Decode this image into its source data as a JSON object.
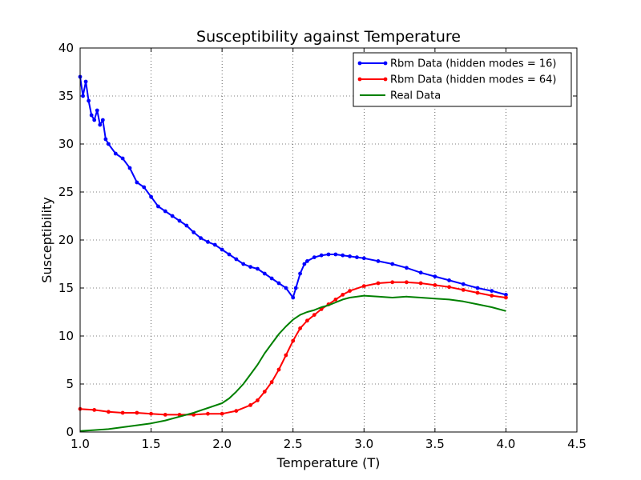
{
  "chart_data": {
    "type": "line",
    "title": "Susceptibility against Temperature",
    "xlabel": "Temperature (T)",
    "ylabel": "Susceptibility",
    "xlim": [
      1.0,
      4.5
    ],
    "ylim": [
      0,
      40
    ],
    "xticks": [
      "1.0",
      "1.5",
      "2.0",
      "2.5",
      "3.0",
      "3.5",
      "4.0",
      "4.5"
    ],
    "yticks": [
      "0",
      "5",
      "10",
      "15",
      "20",
      "25",
      "30",
      "35",
      "40"
    ],
    "grid": true,
    "legend_position": "top-right",
    "series": [
      {
        "name": "Rbm Data (hidden modes = 16)",
        "color": "#0000ff",
        "marker": "dot",
        "x": [
          1.0,
          1.02,
          1.04,
          1.06,
          1.08,
          1.1,
          1.12,
          1.14,
          1.16,
          1.18,
          1.2,
          1.25,
          1.3,
          1.35,
          1.4,
          1.45,
          1.5,
          1.55,
          1.6,
          1.65,
          1.7,
          1.75,
          1.8,
          1.85,
          1.9,
          1.95,
          2.0,
          2.05,
          2.1,
          2.15,
          2.2,
          2.25,
          2.3,
          2.35,
          2.4,
          2.45,
          2.5,
          2.52,
          2.55,
          2.58,
          2.6,
          2.65,
          2.7,
          2.75,
          2.8,
          2.85,
          2.9,
          2.95,
          3.0,
          3.1,
          3.2,
          3.3,
          3.4,
          3.5,
          3.6,
          3.7,
          3.8,
          3.9,
          4.0
        ],
        "y": [
          37,
          35,
          36.5,
          34.5,
          33,
          32.5,
          33.5,
          32,
          32.5,
          30.5,
          30,
          29,
          28.5,
          27.5,
          26,
          25.5,
          24.5,
          23.5,
          23,
          22.5,
          22,
          21.5,
          20.8,
          20.2,
          19.8,
          19.5,
          19,
          18.5,
          18,
          17.5,
          17.2,
          17,
          16.5,
          16,
          15.5,
          15,
          14,
          15,
          16.5,
          17.5,
          17.8,
          18.2,
          18.4,
          18.5,
          18.5,
          18.4,
          18.3,
          18.2,
          18.1,
          17.8,
          17.5,
          17.1,
          16.6,
          16.2,
          15.8,
          15.4,
          15.0,
          14.7,
          14.3
        ]
      },
      {
        "name": "Rbm Data (hidden modes = 64)",
        "color": "#ff0000",
        "marker": "dot",
        "x": [
          1.0,
          1.1,
          1.2,
          1.3,
          1.4,
          1.5,
          1.6,
          1.7,
          1.8,
          1.9,
          2.0,
          2.1,
          2.2,
          2.25,
          2.3,
          2.35,
          2.4,
          2.45,
          2.5,
          2.55,
          2.6,
          2.65,
          2.7,
          2.75,
          2.8,
          2.85,
          2.9,
          3.0,
          3.1,
          3.2,
          3.3,
          3.4,
          3.5,
          3.6,
          3.7,
          3.8,
          3.9,
          4.0
        ],
        "y": [
          2.4,
          2.3,
          2.1,
          2.0,
          2.0,
          1.9,
          1.8,
          1.8,
          1.8,
          1.9,
          1.9,
          2.2,
          2.8,
          3.3,
          4.2,
          5.2,
          6.5,
          8.0,
          9.5,
          10.8,
          11.6,
          12.2,
          12.8,
          13.3,
          13.8,
          14.3,
          14.7,
          15.2,
          15.5,
          15.6,
          15.6,
          15.5,
          15.3,
          15.1,
          14.8,
          14.5,
          14.2,
          14.0
        ]
      },
      {
        "name": "Real Data",
        "color": "#008000",
        "marker": "none",
        "x": [
          1.0,
          1.1,
          1.2,
          1.3,
          1.4,
          1.5,
          1.6,
          1.7,
          1.8,
          1.9,
          2.0,
          2.05,
          2.1,
          2.15,
          2.2,
          2.25,
          2.3,
          2.35,
          2.4,
          2.45,
          2.5,
          2.55,
          2.6,
          2.65,
          2.7,
          2.75,
          2.8,
          2.85,
          2.9,
          3.0,
          3.1,
          3.2,
          3.3,
          3.4,
          3.5,
          3.6,
          3.7,
          3.8,
          3.9,
          4.0
        ],
        "y": [
          0.1,
          0.2,
          0.3,
          0.5,
          0.7,
          0.9,
          1.2,
          1.6,
          2.0,
          2.5,
          3.0,
          3.5,
          4.2,
          5.0,
          6.0,
          7.0,
          8.2,
          9.2,
          10.2,
          11.0,
          11.7,
          12.2,
          12.5,
          12.7,
          13.0,
          13.2,
          13.5,
          13.8,
          14.0,
          14.2,
          14.1,
          14.0,
          14.1,
          14.0,
          13.9,
          13.8,
          13.6,
          13.3,
          13.0,
          12.6
        ]
      }
    ]
  }
}
